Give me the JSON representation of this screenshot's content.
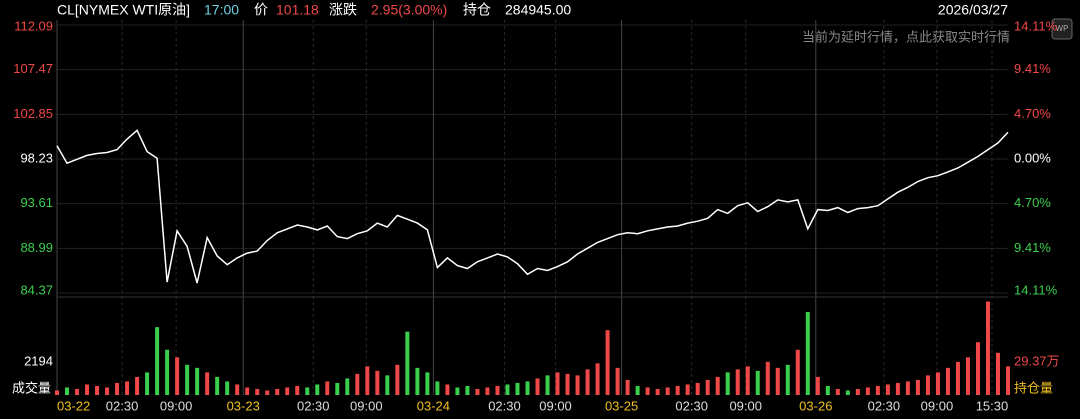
{
  "header": {
    "symbol": "CL[NYMEX WTI原油]",
    "time": "17:00",
    "price_label": "价",
    "price": "101.18",
    "change_label": "涨跌",
    "change": "2.95(3.00%)",
    "oi_label": "持仓",
    "oi": "284945.00",
    "date": "2026/03/27",
    "notice": "当前为延时行情，点此获取实时行情",
    "badge": "WP"
  },
  "chart_data": [
    {
      "type": "line",
      "name": "price",
      "color": "#ffffff",
      "xlim": [
        0,
        95
      ],
      "xticks": [
        {
          "value": 0,
          "label": "03-22"
        },
        {
          "value": 6.5,
          "label": "02:30"
        },
        {
          "value": 11.9,
          "label": "09:00"
        },
        {
          "value": 18.6,
          "label": "03-23"
        },
        {
          "value": 25.6,
          "label": "02:30"
        },
        {
          "value": 30.9,
          "label": "09:00"
        },
        {
          "value": 37.6,
          "label": "03-24"
        },
        {
          "value": 44.7,
          "label": "02:30"
        },
        {
          "value": 49.8,
          "label": "09:00"
        },
        {
          "value": 56.4,
          "label": "03-25"
        },
        {
          "value": 63.4,
          "label": "02:30"
        },
        {
          "value": 68.8,
          "label": "09:00"
        },
        {
          "value": 75.8,
          "label": "03-26"
        },
        {
          "value": 82.6,
          "label": "02:30"
        },
        {
          "value": 87.9,
          "label": "09:00"
        },
        {
          "value": 93.4,
          "label": "15:30"
        }
      ],
      "ylim": [
        84.37,
        112.09
      ],
      "yticks": [
        112.09,
        107.47,
        102.85,
        98.23,
        93.61,
        88.99,
        84.37
      ],
      "y2lim": [
        -14.11,
        14.11
      ],
      "y2ticks": [
        {
          "value": 14.11,
          "label": "14.11%"
        },
        {
          "value": 9.41,
          "label": "9.41%"
        },
        {
          "value": 4.7,
          "label": "4.70%"
        },
        {
          "value": 0,
          "label": "0.00%"
        },
        {
          "value": -4.7,
          "label": "4.70%"
        },
        {
          "value": -9.41,
          "label": "9.41%"
        },
        {
          "value": -14.11,
          "label": "14.11%"
        }
      ],
      "up_color": "#f04848",
      "down_color": "#3ccf4e",
      "grid": true,
      "values": [
        99.6,
        97.8,
        98.2,
        98.6,
        98.8,
        98.9,
        99.2,
        100.3,
        101.2,
        99.0,
        98.3,
        85.5,
        90.8,
        89.2,
        85.4,
        90.1,
        88.2,
        87.3,
        88.0,
        88.5,
        88.7,
        89.8,
        90.6,
        91.0,
        91.4,
        91.2,
        90.9,
        91.3,
        90.2,
        90.0,
        90.5,
        90.8,
        91.6,
        91.2,
        92.4,
        92.0,
        91.6,
        90.9,
        87.0,
        88.0,
        87.2,
        86.9,
        87.6,
        88.0,
        88.4,
        88.1,
        87.4,
        86.3,
        86.9,
        86.7,
        87.1,
        87.6,
        88.4,
        89.0,
        89.6,
        90.0,
        90.4,
        90.6,
        90.5,
        90.8,
        91.0,
        91.2,
        91.3,
        91.6,
        91.8,
        92.1,
        93.0,
        92.6,
        93.4,
        93.7,
        92.8,
        93.3,
        94.0,
        93.8,
        94.0,
        91.0,
        93.0,
        92.9,
        93.2,
        92.7,
        93.1,
        93.2,
        93.4,
        94.1,
        94.8,
        95.3,
        95.9,
        96.3,
        96.5,
        96.9,
        97.3,
        97.9,
        98.5,
        99.2,
        99.9,
        101.0
      ]
    },
    {
      "type": "bar",
      "name": "成交量",
      "name2": "持仓量",
      "ylim": [
        0,
        6300
      ],
      "yticks": [
        2194
      ],
      "y2ticks": [
        "29.37万"
      ],
      "values": [
        300,
        500,
        400,
        700,
        600,
        500,
        800,
        900,
        1200,
        1500,
        4500,
        3000,
        2500,
        2000,
        1800,
        1500,
        1200,
        900,
        700,
        500,
        400,
        300,
        400,
        500,
        600,
        500,
        700,
        900,
        800,
        1100,
        1400,
        1900,
        1600,
        1300,
        2000,
        4200,
        1800,
        1500,
        900,
        700,
        500,
        600,
        400,
        500,
        600,
        700,
        800,
        900,
        1100,
        1300,
        1500,
        1400,
        1300,
        1700,
        2100,
        4300,
        1800,
        1000,
        600,
        500,
        400,
        500,
        600,
        700,
        800,
        1000,
        1200,
        1500,
        1700,
        1900,
        1600,
        2200,
        1800,
        2000,
        3000,
        5500,
        1200,
        600,
        400,
        300,
        400,
        500,
        600,
        700,
        800,
        900,
        1000,
        1300,
        1500,
        1800,
        2200,
        2500,
        3500,
        6200,
        2800,
        1900
      ]
    }
  ]
}
